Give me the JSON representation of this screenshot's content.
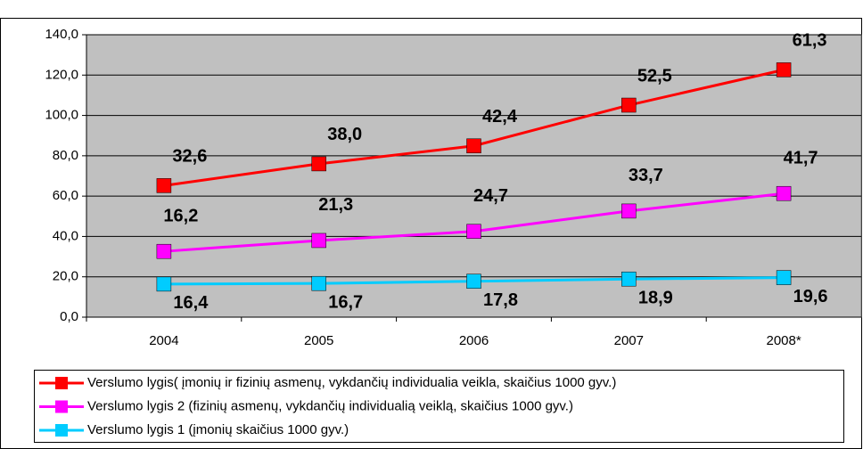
{
  "chart_data": {
    "type": "line",
    "stacked": true,
    "categories": [
      "2004",
      "2005",
      "2006",
      "2007",
      "2008*"
    ],
    "series": [
      {
        "name": "Verslumo lygis( įmonių ir fizinių asmenų, vykdančių individualia veikla, skaičius 1000 gyv.)",
        "color": "#ff0000",
        "values": [
          32.6,
          38.0,
          42.4,
          52.5,
          61.3
        ],
        "value_labels": [
          "32,6",
          "38,0",
          "42,4",
          "52,5",
          "61,3"
        ]
      },
      {
        "name": "Verslumo lygis 2 (fizinių asmenų, vykdančių individualią veiklą, skaičius 1000 gyv.)",
        "color": "#ff00ff",
        "values": [
          16.2,
          21.3,
          24.7,
          33.7,
          41.7
        ],
        "value_labels": [
          "16,2",
          "21,3",
          "24,7",
          "33,7",
          "41,7"
        ]
      },
      {
        "name": "Verslumo lygis 1 (įmonių skaičius 1000 gyv.)",
        "color": "#00ccff",
        "values": [
          16.4,
          16.7,
          17.8,
          18.9,
          19.6
        ],
        "value_labels": [
          "16,4",
          "16,7",
          "17,8",
          "18,9",
          "19,6"
        ]
      }
    ],
    "ylim": [
      0,
      140
    ],
    "yticks": [
      {
        "value": 0,
        "label": "0,0"
      },
      {
        "value": 20,
        "label": "20,0"
      },
      {
        "value": 40,
        "label": "40,0"
      },
      {
        "value": 60,
        "label": "60,0"
      },
      {
        "value": 80,
        "label": "80,0"
      },
      {
        "value": 100,
        "label": "100,0"
      },
      {
        "value": 120,
        "label": "120,0"
      },
      {
        "value": 140,
        "label": "140,0"
      }
    ],
    "grid": true,
    "legend": "bottom",
    "plot_background": "#c0c0c0"
  }
}
